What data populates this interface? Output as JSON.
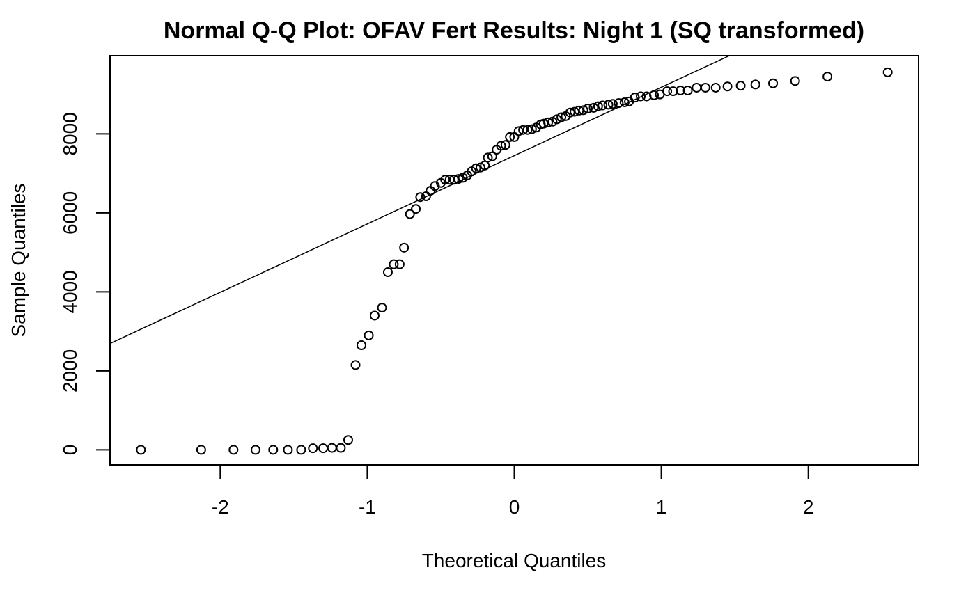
{
  "chart_data": {
    "type": "scatter",
    "title": "Normal Q-Q Plot: OFAV Fert Results: Night 1 (SQ transformed)",
    "xlabel": "Theoretical Quantiles",
    "ylabel": "Sample Quantiles",
    "xlim": [
      -2.75,
      2.75
    ],
    "ylim": [
      -380,
      9980
    ],
    "x_ticks": [
      -2,
      -1,
      0,
      1,
      2
    ],
    "x_tick_labels": [
      "-2",
      "-1",
      "0",
      "1",
      "2"
    ],
    "y_ticks": [
      0,
      2000,
      4000,
      6000,
      8000
    ],
    "y_tick_labels": [
      "0",
      "2000",
      "4000",
      "6000",
      "8000"
    ],
    "grid": false,
    "legend": "none",
    "point_color": "#000000",
    "line_color": "#000000",
    "reference_line": {
      "intercept": 7450,
      "slope": 1730
    },
    "series": [
      {
        "marker": "open-circle",
        "points": [
          [
            -2.54,
            0
          ],
          [
            -2.13,
            0
          ],
          [
            -1.91,
            0
          ],
          [
            -1.76,
            0
          ],
          [
            -1.64,
            0
          ],
          [
            -1.54,
            0
          ],
          [
            -1.45,
            0
          ],
          [
            -1.37,
            40
          ],
          [
            -1.3,
            40
          ],
          [
            -1.24,
            50
          ],
          [
            -1.18,
            50
          ],
          [
            -1.13,
            250
          ],
          [
            -1.08,
            2150
          ],
          [
            -1.04,
            2650
          ],
          [
            -0.99,
            2900
          ],
          [
            -0.95,
            3400
          ],
          [
            -0.9,
            3600
          ],
          [
            -0.86,
            4500
          ],
          [
            -0.82,
            4700
          ],
          [
            -0.78,
            4700
          ],
          [
            -0.75,
            5120
          ],
          [
            -0.71,
            5970
          ],
          [
            -0.67,
            6100
          ],
          [
            -0.64,
            6400
          ],
          [
            -0.6,
            6420
          ],
          [
            -0.57,
            6560
          ],
          [
            -0.54,
            6680
          ],
          [
            -0.5,
            6760
          ],
          [
            -0.47,
            6840
          ],
          [
            -0.44,
            6840
          ],
          [
            -0.41,
            6840
          ],
          [
            -0.38,
            6860
          ],
          [
            -0.35,
            6890
          ],
          [
            -0.32,
            6950
          ],
          [
            -0.29,
            7050
          ],
          [
            -0.26,
            7130
          ],
          [
            -0.23,
            7150
          ],
          [
            -0.2,
            7200
          ],
          [
            -0.18,
            7400
          ],
          [
            -0.15,
            7430
          ],
          [
            -0.12,
            7600
          ],
          [
            -0.09,
            7700
          ],
          [
            -0.06,
            7720
          ],
          [
            -0.03,
            7920
          ],
          [
            0.0,
            7920
          ],
          [
            0.03,
            8070
          ],
          [
            0.06,
            8100
          ],
          [
            0.09,
            8100
          ],
          [
            0.12,
            8120
          ],
          [
            0.15,
            8160
          ],
          [
            0.18,
            8240
          ],
          [
            0.2,
            8260
          ],
          [
            0.23,
            8290
          ],
          [
            0.26,
            8310
          ],
          [
            0.29,
            8370
          ],
          [
            0.32,
            8420
          ],
          [
            0.35,
            8450
          ],
          [
            0.38,
            8540
          ],
          [
            0.41,
            8560
          ],
          [
            0.44,
            8590
          ],
          [
            0.47,
            8600
          ],
          [
            0.5,
            8640
          ],
          [
            0.54,
            8660
          ],
          [
            0.57,
            8700
          ],
          [
            0.6,
            8720
          ],
          [
            0.64,
            8740
          ],
          [
            0.67,
            8760
          ],
          [
            0.71,
            8780
          ],
          [
            0.75,
            8800
          ],
          [
            0.78,
            8820
          ],
          [
            0.82,
            8920
          ],
          [
            0.86,
            8950
          ],
          [
            0.9,
            8950
          ],
          [
            0.95,
            8980
          ],
          [
            0.99,
            9000
          ],
          [
            1.04,
            9080
          ],
          [
            1.08,
            9080
          ],
          [
            1.13,
            9100
          ],
          [
            1.18,
            9100
          ],
          [
            1.24,
            9170
          ],
          [
            1.3,
            9170
          ],
          [
            1.37,
            9170
          ],
          [
            1.45,
            9200
          ],
          [
            1.54,
            9220
          ],
          [
            1.64,
            9250
          ],
          [
            1.76,
            9280
          ],
          [
            1.91,
            9340
          ],
          [
            2.13,
            9450
          ],
          [
            2.54,
            9560
          ]
        ]
      }
    ]
  }
}
